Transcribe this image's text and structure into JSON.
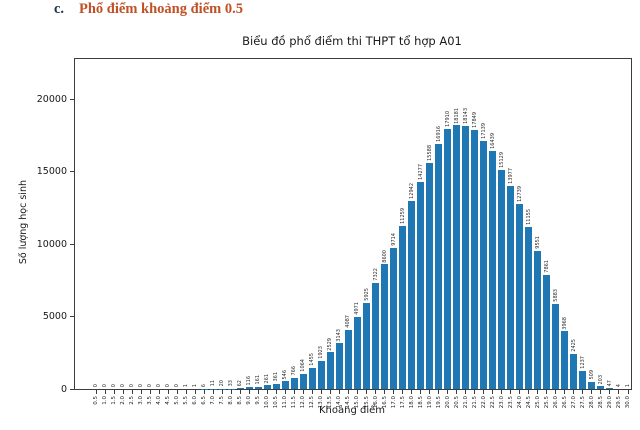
{
  "heading": {
    "marker": "c.",
    "text": "Phổ điểm khoảng điểm 0.5"
  },
  "colors": {
    "heading_marker": "#1f3152",
    "heading_text": "#c05025",
    "bar": "#1f77b4",
    "axis": "#3c3c3c"
  },
  "chart_data": {
    "type": "bar",
    "title": "Biểu đồ phổ điểm thi THPT tổ hợp A01",
    "xlabel": "Khoảng điểm",
    "ylabel": "Số lượng học sinh",
    "categories": [
      "0.5",
      "1.0",
      "1.5",
      "2.0",
      "2.5",
      "3.0",
      "3.5",
      "4.0",
      "4.5",
      "5.0",
      "5.5",
      "6.0",
      "6.5",
      "7.0",
      "7.5",
      "8.0",
      "8.5",
      "9.0",
      "9.5",
      "10.0",
      "10.5",
      "11.0",
      "11.5",
      "12.0",
      "12.5",
      "13.0",
      "13.5",
      "14.0",
      "14.5",
      "15.0",
      "15.5",
      "16.0",
      "16.5",
      "17.0",
      "17.5",
      "18.0",
      "18.5",
      "19.0",
      "19.5",
      "20.0",
      "20.5",
      "21.0",
      "21.5",
      "22.0",
      "22.5",
      "23.0",
      "23.5",
      "24.0",
      "24.5",
      "25.0",
      "25.5",
      "26.0",
      "26.5",
      "27.0",
      "27.5",
      "28.0",
      "28.5",
      "29.0",
      "29.5",
      "30.0"
    ],
    "values": [
      0,
      0,
      0,
      0,
      0,
      0,
      0,
      0,
      0,
      0,
      1,
      1,
      6,
      11,
      20,
      33,
      62,
      116,
      161,
      261,
      361,
      546,
      766,
      1064,
      1455,
      1923,
      2529,
      3143,
      4087,
      4971,
      5925,
      7322,
      8600,
      9714,
      11259,
      12942,
      14277,
      15588,
      16916,
      17910,
      18181,
      18143,
      17849,
      17139,
      16439,
      15129,
      13977,
      12739,
      11155,
      9551,
      7861,
      5883,
      3968,
      2425,
      1237,
      509,
      203,
      47,
      4,
      1
    ],
    "yticks": [
      0,
      5000,
      10000,
      15000,
      20000
    ],
    "ylim": [
      0,
      22760
    ],
    "grid": false,
    "legend": false,
    "value_labels": true,
    "bar_color": "#1f77b4"
  }
}
